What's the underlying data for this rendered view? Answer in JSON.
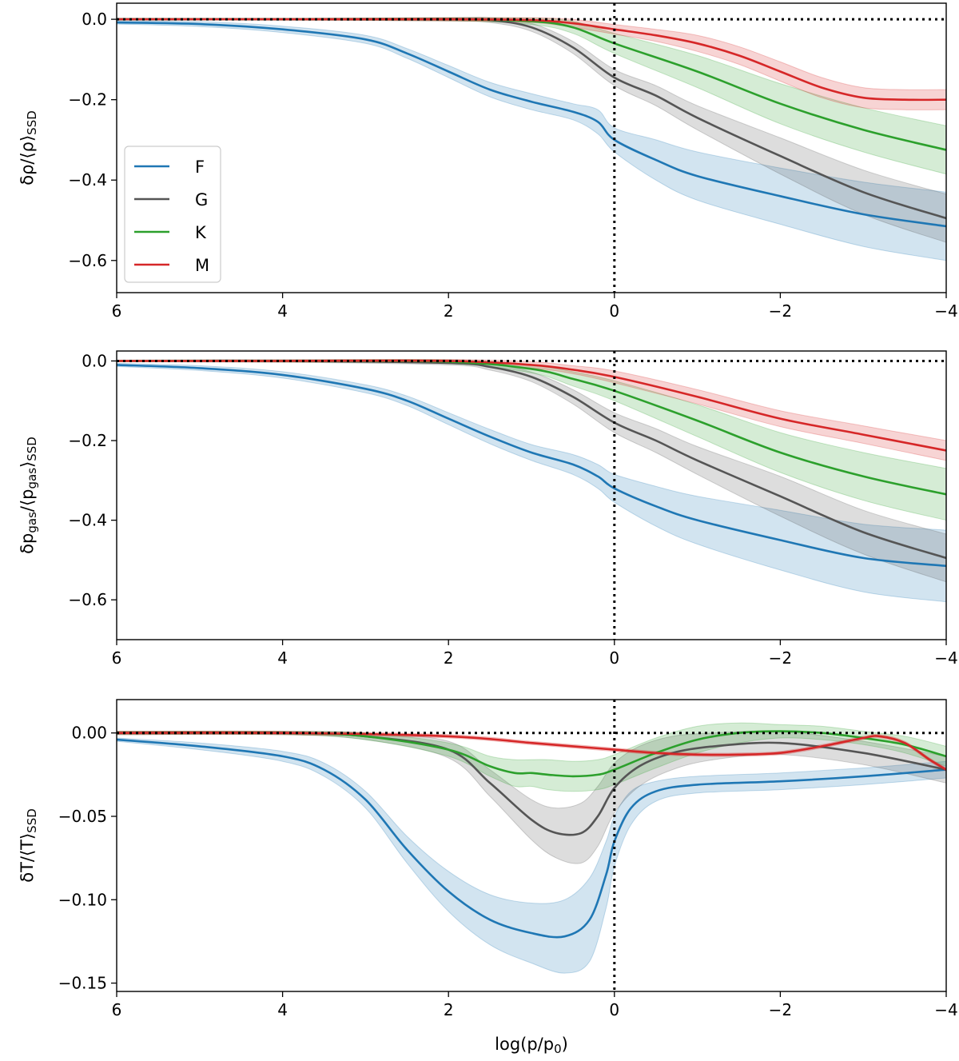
{
  "chart_data": [
    {
      "type": "line",
      "panel": "density",
      "ylabel": "δρ/⟨ρ⟩",
      "ylabel_subscript": "SSD",
      "xlabel": "",
      "xlim": [
        6,
        -4
      ],
      "ylim": [
        -0.68,
        0.04
      ],
      "xticks": [
        6,
        4,
        2,
        0,
        -2,
        -4
      ],
      "xtick_labels": [
        "6",
        "4",
        "2",
        "0",
        "−2",
        "−4"
      ],
      "yticks": [
        0.0,
        -0.2,
        -0.4,
        -0.6
      ],
      "ytick_labels": [
        "0.0",
        "−0.2",
        "−0.4",
        "−0.6"
      ],
      "reference_lines": {
        "y": 0,
        "x": 0,
        "style": "dotted"
      },
      "legend": {
        "position": "left",
        "entries": [
          "F",
          "G",
          "K",
          "M"
        ]
      },
      "series": [
        {
          "name": "F",
          "color": "#1f77b4",
          "x": [
            6,
            5,
            4,
            3,
            2.5,
            2,
            1.5,
            1,
            0.5,
            0.2,
            0,
            -0.5,
            -1,
            -2,
            -3,
            -4
          ],
          "y": [
            -0.008,
            -0.012,
            -0.025,
            -0.05,
            -0.085,
            -0.13,
            -0.175,
            -0.205,
            -0.23,
            -0.255,
            -0.3,
            -0.35,
            -0.39,
            -0.44,
            -0.485,
            -0.515
          ],
          "band_width": [
            0.004,
            0.006,
            0.008,
            0.01,
            0.012,
            0.015,
            0.018,
            0.02,
            0.02,
            0.03,
            0.03,
            0.05,
            0.06,
            0.07,
            0.08,
            0.085
          ]
        },
        {
          "name": "G",
          "color": "#555555",
          "x": [
            6,
            4,
            2,
            1.5,
            1,
            0.5,
            0,
            -0.5,
            -1,
            -2,
            -3,
            -4
          ],
          "y": [
            0.0,
            0.0,
            0.0,
            -0.002,
            -0.02,
            -0.07,
            -0.145,
            -0.19,
            -0.245,
            -0.34,
            -0.43,
            -0.495
          ],
          "band_width": [
            0.002,
            0.002,
            0.004,
            0.006,
            0.01,
            0.015,
            0.02,
            0.025,
            0.03,
            0.045,
            0.055,
            0.06
          ]
        },
        {
          "name": "K",
          "color": "#2ca02c",
          "x": [
            6,
            4,
            2,
            1,
            0.5,
            0,
            -1,
            -2,
            -3,
            -4
          ],
          "y": [
            0.0,
            0.0,
            0.0,
            -0.005,
            -0.02,
            -0.06,
            -0.13,
            -0.21,
            -0.275,
            -0.325
          ],
          "band_width": [
            0.002,
            0.002,
            0.004,
            0.008,
            0.015,
            0.025,
            0.04,
            0.05,
            0.055,
            0.06
          ]
        },
        {
          "name": "M",
          "color": "#d62728",
          "x": [
            6,
            4,
            2,
            1,
            0.5,
            0,
            -0.5,
            -1,
            -1.5,
            -2,
            -2.5,
            -3,
            -3.5,
            -4
          ],
          "y": [
            0.0,
            0.0,
            0.0,
            -0.002,
            -0.01,
            -0.025,
            -0.04,
            -0.06,
            -0.09,
            -0.13,
            -0.17,
            -0.195,
            -0.2,
            -0.2
          ],
          "band_width": [
            0.002,
            0.002,
            0.004,
            0.006,
            0.01,
            0.012,
            0.015,
            0.02,
            0.022,
            0.024,
            0.025,
            0.025,
            0.025,
            0.025
          ]
        }
      ]
    },
    {
      "type": "line",
      "panel": "gas_pressure",
      "ylabel": "δp",
      "ylabel_sub1": "gas",
      "ylabel_mid": "/⟨p",
      "ylabel_sub2": "gas",
      "ylabel_end": "⟩",
      "ylabel_subscript": "SSD",
      "xlabel": "",
      "xlim": [
        6,
        -4
      ],
      "ylim": [
        -0.7,
        0.025
      ],
      "xticks": [
        6,
        4,
        2,
        0,
        -2,
        -4
      ],
      "xtick_labels": [
        "6",
        "4",
        "2",
        "0",
        "−2",
        "−4"
      ],
      "yticks": [
        0.0,
        -0.2,
        -0.4,
        -0.6
      ],
      "ytick_labels": [
        "0.0",
        "−0.2",
        "−0.4",
        "−0.6"
      ],
      "reference_lines": {
        "y": 0,
        "x": 0,
        "style": "dotted"
      },
      "series": [
        {
          "name": "F",
          "color": "#1f77b4",
          "x": [
            6,
            5,
            4,
            3,
            2.5,
            2,
            1.5,
            1,
            0.5,
            0.2,
            0,
            -0.5,
            -1,
            -2,
            -3,
            -4
          ],
          "y": [
            -0.01,
            -0.018,
            -0.035,
            -0.07,
            -0.1,
            -0.145,
            -0.19,
            -0.23,
            -0.26,
            -0.29,
            -0.32,
            -0.365,
            -0.4,
            -0.45,
            -0.495,
            -0.515
          ],
          "band_width": [
            0.004,
            0.006,
            0.008,
            0.01,
            0.012,
            0.015,
            0.018,
            0.02,
            0.025,
            0.03,
            0.035,
            0.05,
            0.06,
            0.075,
            0.085,
            0.09
          ]
        },
        {
          "name": "G",
          "color": "#555555",
          "x": [
            6,
            4,
            2,
            1.5,
            1,
            0.5,
            0,
            -0.5,
            -1,
            -2,
            -3,
            -4
          ],
          "y": [
            0.0,
            0.0,
            -0.005,
            -0.015,
            -0.04,
            -0.09,
            -0.155,
            -0.2,
            -0.25,
            -0.34,
            -0.43,
            -0.495
          ],
          "band_width": [
            0.002,
            0.003,
            0.005,
            0.008,
            0.012,
            0.018,
            0.025,
            0.03,
            0.035,
            0.05,
            0.055,
            0.06
          ]
        },
        {
          "name": "K",
          "color": "#2ca02c",
          "x": [
            6,
            4,
            2,
            1,
            0.5,
            0,
            -1,
            -2,
            -3,
            -4
          ],
          "y": [
            0.0,
            0.0,
            -0.002,
            -0.02,
            -0.045,
            -0.075,
            -0.15,
            -0.23,
            -0.29,
            -0.335
          ],
          "band_width": [
            0.002,
            0.003,
            0.005,
            0.01,
            0.018,
            0.025,
            0.04,
            0.05,
            0.06,
            0.065
          ]
        },
        {
          "name": "M",
          "color": "#d62728",
          "x": [
            6,
            4,
            2,
            1,
            0.5,
            0,
            -1,
            -2,
            -3,
            -4
          ],
          "y": [
            0.0,
            0.0,
            0.0,
            -0.01,
            -0.022,
            -0.04,
            -0.09,
            -0.145,
            -0.185,
            -0.225
          ],
          "band_width": [
            0.002,
            0.003,
            0.004,
            0.008,
            0.01,
            0.015,
            0.018,
            0.02,
            0.022,
            0.025
          ]
        }
      ]
    },
    {
      "type": "line",
      "panel": "temperature",
      "ylabel": "δT/⟨T⟩",
      "ylabel_subscript": "SSD",
      "xlabel": "log(p/p",
      "xlabel_subscript": "0",
      "xlabel_end": ")",
      "xlim": [
        6,
        -4
      ],
      "ylim": [
        -0.155,
        0.02
      ],
      "xticks": [
        6,
        4,
        2,
        0,
        -2,
        -4
      ],
      "xtick_labels": [
        "6",
        "4",
        "2",
        "0",
        "−2",
        "−4"
      ],
      "yticks": [
        0.0,
        -0.05,
        -0.1,
        -0.15
      ],
      "ytick_labels": [
        "0.00",
        "−0.05",
        "−0.10",
        "−0.15"
      ],
      "reference_lines": {
        "y": 0,
        "x": 0,
        "style": "dotted"
      },
      "series": [
        {
          "name": "F",
          "color": "#1f77b4",
          "x": [
            6,
            5,
            4,
            3.5,
            3,
            2.5,
            2,
            1.5,
            1,
            0.6,
            0.3,
            0.1,
            0,
            -0.2,
            -0.5,
            -1,
            -2,
            -3,
            -4
          ],
          "y": [
            -0.004,
            -0.008,
            -0.014,
            -0.022,
            -0.04,
            -0.07,
            -0.095,
            -0.112,
            -0.12,
            -0.122,
            -0.112,
            -0.085,
            -0.065,
            -0.045,
            -0.035,
            -0.031,
            -0.029,
            -0.026,
            -0.022
          ],
          "band_width": [
            0.001,
            0.002,
            0.003,
            0.004,
            0.005,
            0.008,
            0.012,
            0.015,
            0.018,
            0.022,
            0.025,
            0.02,
            0.015,
            0.01,
            0.006,
            0.005,
            0.005,
            0.005,
            0.005
          ]
        },
        {
          "name": "G",
          "color": "#555555",
          "x": [
            6,
            4,
            3,
            2,
            1.5,
            1,
            0.7,
            0.4,
            0.2,
            0,
            -0.3,
            -0.7,
            -1.2,
            -2,
            -3,
            -4
          ],
          "y": [
            0.0,
            0.0,
            -0.002,
            -0.01,
            -0.03,
            -0.052,
            -0.06,
            -0.06,
            -0.05,
            -0.033,
            -0.02,
            -0.012,
            -0.008,
            -0.006,
            -0.012,
            -0.022
          ],
          "band_width": [
            0.001,
            0.001,
            0.002,
            0.005,
            0.008,
            0.012,
            0.015,
            0.018,
            0.018,
            0.015,
            0.012,
            0.01,
            0.008,
            0.007,
            0.007,
            0.008
          ]
        },
        {
          "name": "K",
          "color": "#2ca02c",
          "x": [
            6,
            4,
            3,
            2,
            1.5,
            1.2,
            1,
            0.8,
            0.5,
            0.2,
            0,
            -0.5,
            -1,
            -1.5,
            -2,
            -2.5,
            -3,
            -3.5,
            -4
          ],
          "y": [
            0.0,
            0.0,
            -0.002,
            -0.01,
            -0.02,
            -0.024,
            -0.024,
            -0.025,
            -0.026,
            -0.025,
            -0.022,
            -0.012,
            -0.004,
            0.0,
            0.001,
            0.0,
            -0.003,
            -0.007,
            -0.014
          ],
          "band_width": [
            0.001,
            0.001,
            0.002,
            0.004,
            0.006,
            0.008,
            0.008,
            0.009,
            0.009,
            0.009,
            0.009,
            0.009,
            0.008,
            0.006,
            0.004,
            0.004,
            0.004,
            0.005,
            0.006
          ]
        },
        {
          "name": "M",
          "color": "#d62728",
          "x": [
            6,
            4,
            2,
            1,
            0.5,
            0,
            -0.5,
            -1,
            -1.5,
            -2,
            -2.5,
            -3,
            -3.2,
            -3.5,
            -3.8,
            -4
          ],
          "y": [
            0.0,
            0.0,
            -0.002,
            -0.006,
            -0.008,
            -0.01,
            -0.012,
            -0.013,
            -0.013,
            -0.012,
            -0.008,
            -0.003,
            -0.002,
            -0.006,
            -0.016,
            -0.022
          ],
          "band_width": [
            0.001,
            0.001,
            0.001,
            0.001,
            0.001,
            0.001,
            0.001,
            0.001,
            0.001,
            0.001,
            0.001,
            0.001,
            0.001,
            0.001,
            0.001,
            0.001
          ]
        }
      ]
    }
  ]
}
